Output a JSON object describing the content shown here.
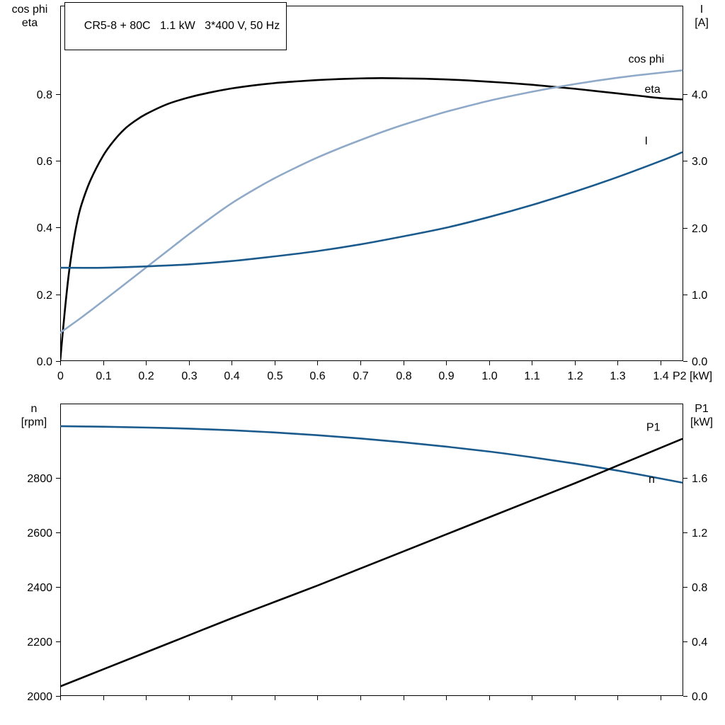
{
  "title": {
    "model": "CR5-8 + 80C",
    "rated_power": "1.1 kW",
    "supply": "3*400 V, 50 Hz",
    "text": "CR5-8 + 80C   1.1 kW   3*400 V, 50 Hz"
  },
  "colors": {
    "black": "#000000",
    "light_blue": "#8fa9c8",
    "dark_blue": "#1a5a8c"
  },
  "axis_titles": {
    "top_left": [
      "cos phi",
      "eta"
    ],
    "top_right": [
      "I",
      "[A]"
    ],
    "bottom_left": [
      "n",
      "[rpm]"
    ],
    "bottom_right": [
      "P1",
      "[kW]"
    ]
  },
  "chart_data": [
    {
      "type": "line",
      "name": "electrical-curves",
      "xlabel": "P2 [kW]",
      "x_range": [
        0,
        1.453
      ],
      "y_left": {
        "label": "cos phi / eta",
        "range": [
          0,
          1.065
        ],
        "tick_values": [
          0,
          0.2,
          0.4,
          0.6,
          0.8
        ],
        "tick_labels": [
          "0.0",
          "0.2",
          "0.4",
          "0.6",
          "0.8"
        ]
      },
      "y_right": {
        "label": "I [A]",
        "range": [
          0,
          5.33
        ],
        "tick_values": [
          0,
          1,
          2,
          3,
          4
        ],
        "tick_labels": [
          "0.0",
          "1.0",
          "2.0",
          "3.0",
          "4.0"
        ]
      },
      "x_ticks": {
        "values": [
          0,
          0.1,
          0.2,
          0.3,
          0.4,
          0.5,
          0.6,
          0.7,
          0.8,
          0.9,
          1.0,
          1.1,
          1.2,
          1.3,
          1.4
        ],
        "labels": [
          "0",
          "0.1",
          "0.2",
          "0.3",
          "0.4",
          "0.5",
          "0.6",
          "0.7",
          "0.8",
          "0.9",
          "1.0",
          "1.1",
          "1.2",
          "1.3",
          "1.4"
        ],
        "suffix": "P2 [kW]"
      },
      "series": [
        {
          "name": "eta",
          "axis": "left",
          "color": "black",
          "x": [
            0,
            0.01,
            0.02,
            0.03,
            0.04,
            0.05,
            0.07,
            0.1,
            0.125,
            0.15,
            0.175,
            0.2,
            0.25,
            0.3,
            0.35,
            0.4,
            0.45,
            0.5,
            0.55,
            0.6,
            0.65,
            0.7,
            0.75,
            0.8,
            0.85,
            0.9,
            0.95,
            1.0,
            1.05,
            1.1,
            1.15,
            1.2,
            1.25,
            1.3,
            1.35,
            1.4,
            1.45
          ],
          "y": [
            0,
            0.14,
            0.26,
            0.35,
            0.42,
            0.47,
            0.54,
            0.615,
            0.66,
            0.695,
            0.72,
            0.74,
            0.77,
            0.79,
            0.805,
            0.817,
            0.826,
            0.833,
            0.838,
            0.842,
            0.845,
            0.847,
            0.848,
            0.847,
            0.846,
            0.844,
            0.841,
            0.837,
            0.833,
            0.828,
            0.822,
            0.816,
            0.809,
            0.802,
            0.795,
            0.788,
            0.784
          ]
        },
        {
          "name": "cos phi",
          "axis": "left",
          "color": "light_blue",
          "x": [
            0,
            0.05,
            0.1,
            0.15,
            0.2,
            0.25,
            0.3,
            0.35,
            0.4,
            0.45,
            0.5,
            0.55,
            0.6,
            0.65,
            0.7,
            0.75,
            0.8,
            0.85,
            0.9,
            0.95,
            1.0,
            1.05,
            1.1,
            1.15,
            1.2,
            1.25,
            1.3,
            1.35,
            1.4,
            1.45
          ],
          "y": [
            0.085,
            0.131,
            0.18,
            0.23,
            0.28,
            0.33,
            0.38,
            0.428,
            0.473,
            0.512,
            0.548,
            0.58,
            0.61,
            0.637,
            0.662,
            0.686,
            0.708,
            0.728,
            0.747,
            0.764,
            0.78,
            0.794,
            0.807,
            0.819,
            0.83,
            0.84,
            0.849,
            0.857,
            0.864,
            0.871
          ]
        },
        {
          "name": "I",
          "axis": "right",
          "color": "dark_blue",
          "x": [
            0,
            0.1,
            0.2,
            0.3,
            0.4,
            0.5,
            0.6,
            0.7,
            0.8,
            0.9,
            1.0,
            1.1,
            1.2,
            1.3,
            1.4,
            1.45
          ],
          "y": [
            1.4,
            1.4,
            1.42,
            1.45,
            1.5,
            1.57,
            1.65,
            1.75,
            1.87,
            2.0,
            2.16,
            2.34,
            2.54,
            2.76,
            3.0,
            3.13
          ]
        }
      ],
      "curve_labels": [
        {
          "text": "cos phi",
          "axis": "left",
          "x": 1.325,
          "y": 0.905,
          "color": "light_blue"
        },
        {
          "text": "eta",
          "axis": "left",
          "x": 1.363,
          "y": 0.815,
          "color": "black"
        },
        {
          "text": "I",
          "axis": "right",
          "x": 1.363,
          "y": 3.3,
          "color": "dark_blue"
        }
      ]
    },
    {
      "type": "line",
      "name": "speed-power-curves",
      "xlabel": "",
      "x_range": [
        0,
        1.453
      ],
      "y_left": {
        "label": "n [rpm]",
        "range": [
          2000,
          3073
        ],
        "tick_values": [
          2000,
          2200,
          2400,
          2600,
          2800
        ],
        "tick_labels": [
          "2000",
          "2200",
          "2400",
          "2600",
          "2800"
        ]
      },
      "y_right": {
        "label": "P1 [kW]",
        "range": [
          0,
          2.145
        ],
        "tick_values": [
          0,
          0.4,
          0.8,
          1.2,
          1.6
        ],
        "tick_labels": [
          "0.0",
          "0.4",
          "0.8",
          "1.2",
          "1.6"
        ]
      },
      "x_ticks": {
        "values": [
          0,
          0.1,
          0.2,
          0.3,
          0.4,
          0.5,
          0.6,
          0.7,
          0.8,
          0.9,
          1.0,
          1.1,
          1.2,
          1.3,
          1.4
        ],
        "labels": [],
        "suffix": ""
      },
      "series": [
        {
          "name": "n",
          "axis": "left",
          "color": "dark_blue",
          "x": [
            0,
            0.1,
            0.2,
            0.3,
            0.4,
            0.5,
            0.6,
            0.7,
            0.8,
            0.9,
            1.0,
            1.1,
            1.2,
            1.3,
            1.4,
            1.45
          ],
          "y": [
            2990,
            2988,
            2985,
            2981,
            2975,
            2967,
            2957,
            2945,
            2931,
            2915,
            2897,
            2876,
            2853,
            2827,
            2798,
            2783
          ]
        },
        {
          "name": "P1",
          "axis": "right",
          "color": "black",
          "x": [
            0,
            0.1,
            0.2,
            0.3,
            0.4,
            0.5,
            0.6,
            0.7,
            0.8,
            0.9,
            1.0,
            1.1,
            1.2,
            1.3,
            1.4,
            1.45
          ],
          "y": [
            0.07,
            0.195,
            0.32,
            0.445,
            0.57,
            0.69,
            0.81,
            0.935,
            1.06,
            1.185,
            1.31,
            1.435,
            1.56,
            1.69,
            1.82,
            1.885
          ]
        }
      ],
      "curve_labels": [
        {
          "text": "P1",
          "axis": "right",
          "x": 1.367,
          "y": 1.97,
          "color": "black"
        },
        {
          "text": "n",
          "axis": "left",
          "x": 1.372,
          "y": 2795,
          "color": "dark_blue"
        }
      ]
    }
  ]
}
